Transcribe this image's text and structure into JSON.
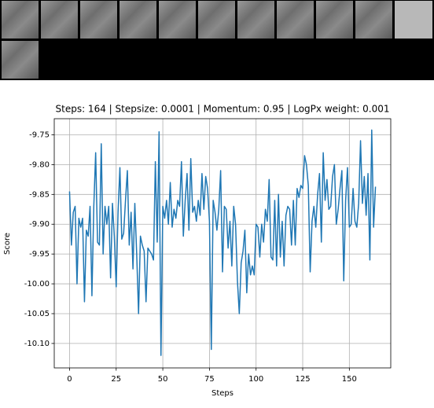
{
  "chart_data": {
    "type": "line",
    "title": "Steps: 164 | Stepsize: 0.0001 | Momentum: 0.95 | LogPx weight: 0.001",
    "xlabel": "Steps",
    "ylabel": "Score",
    "xlim": [
      -8.2,
      172.2
    ],
    "xticks": [
      0,
      25,
      50,
      75,
      100,
      125,
      150
    ],
    "ylim": [
      -10.141,
      -9.723
    ],
    "yticks": [
      -9.75,
      {
        "value": -9.8,
        "label": "-9.80"
      },
      -9.85,
      {
        "value": -9.9,
        "label": "-9.90"
      },
      -9.95,
      {
        "value": -10,
        "label": "-10.00"
      },
      -10.05,
      {
        "value": -10.1,
        "label": "-10.10"
      }
    ],
    "grid": true,
    "series": [
      {
        "color": "#1f77b4",
        "x": [
          0,
          1,
          2,
          3,
          4,
          5,
          6,
          7,
          8,
          9,
          10,
          11,
          12,
          13,
          14,
          15,
          16,
          17,
          18,
          19,
          20,
          21,
          22,
          23,
          24,
          25,
          26,
          27,
          28,
          29,
          30,
          31,
          32,
          33,
          34,
          35,
          36,
          37,
          38,
          39,
          40,
          41,
          42,
          43,
          44,
          45,
          46,
          47,
          48,
          49,
          50,
          51,
          52,
          53,
          54,
          55,
          56,
          57,
          58,
          59,
          60,
          61,
          62,
          63,
          64,
          65,
          66,
          67,
          68,
          69,
          70,
          71,
          72,
          73,
          74,
          75,
          76,
          77,
          78,
          79,
          80,
          81,
          82,
          83,
          84,
          85,
          86,
          87,
          88,
          89,
          90,
          91,
          92,
          93,
          94,
          95,
          96,
          97,
          98,
          99,
          100,
          101,
          102,
          103,
          104,
          105,
          106,
          107,
          108,
          109,
          110,
          111,
          112,
          113,
          114,
          115,
          116,
          117,
          118,
          119,
          120,
          121,
          122,
          123,
          124,
          125,
          126,
          127,
          128,
          129,
          130,
          131,
          132,
          133,
          134,
          135,
          136,
          137,
          138,
          139,
          140,
          141,
          142,
          143,
          144,
          145,
          146,
          147,
          148,
          149,
          150,
          151,
          152,
          153,
          154,
          155,
          156,
          157,
          158,
          159,
          160,
          161,
          162,
          163,
          164
        ],
        "values": [
          -9.845,
          -9.935,
          -9.88,
          -9.87,
          -10.0,
          -9.89,
          -9.905,
          -9.89,
          -10.03,
          -9.91,
          -9.92,
          -9.87,
          -10.02,
          -9.87,
          -9.78,
          -9.93,
          -9.935,
          -9.765,
          -9.95,
          -9.87,
          -9.9,
          -9.87,
          -9.99,
          -9.865,
          -9.92,
          -10.005,
          -9.88,
          -9.805,
          -9.925,
          -9.915,
          -9.86,
          -9.81,
          -9.935,
          -9.88,
          -9.975,
          -9.865,
          -9.95,
          -10.05,
          -9.92,
          -9.935,
          -9.945,
          -10.03,
          -9.94,
          -9.945,
          -9.95,
          -9.96,
          -9.795,
          -9.93,
          -9.745,
          -10.12,
          -9.87,
          -9.89,
          -9.86,
          -9.9,
          -9.83,
          -9.905,
          -9.875,
          -9.89,
          -9.86,
          -9.87,
          -9.795,
          -9.92,
          -9.86,
          -9.815,
          -9.91,
          -9.79,
          -9.88,
          -9.87,
          -9.895,
          -9.86,
          -9.885,
          -9.815,
          -9.875,
          -9.82,
          -9.84,
          -9.895,
          -10.11,
          -9.86,
          -9.88,
          -9.91,
          -9.875,
          -9.81,
          -9.98,
          -9.87,
          -9.875,
          -9.94,
          -9.895,
          -9.97,
          -9.87,
          -9.9,
          -9.995,
          -10.05,
          -9.965,
          -9.945,
          -9.91,
          -10.015,
          -9.95,
          -9.985,
          -9.97,
          -9.985,
          -9.9,
          -9.905,
          -9.955,
          -9.9,
          -9.93,
          -9.875,
          -9.895,
          -9.825,
          -9.955,
          -9.96,
          -9.86,
          -9.97,
          -9.85,
          -9.955,
          -9.895,
          -9.97,
          -9.885,
          -9.87,
          -9.875,
          -9.935,
          -9.86,
          -9.935,
          -9.84,
          -9.855,
          -9.835,
          -9.84,
          -9.785,
          -9.8,
          -9.835,
          -9.98,
          -9.895,
          -9.87,
          -9.905,
          -9.85,
          -9.815,
          -9.93,
          -9.78,
          -9.86,
          -9.825,
          -9.875,
          -9.87,
          -9.82,
          -9.8,
          -9.9,
          -9.875,
          -9.84,
          -9.81,
          -9.995,
          -9.86,
          -9.805,
          -9.905,
          -9.9,
          -9.84,
          -9.895,
          -9.905,
          -9.865,
          -9.76,
          -9.865,
          -9.82,
          -9.885,
          -9.815,
          -9.96,
          -9.742,
          -9.905,
          -9.837
        ]
      }
    ]
  }
}
